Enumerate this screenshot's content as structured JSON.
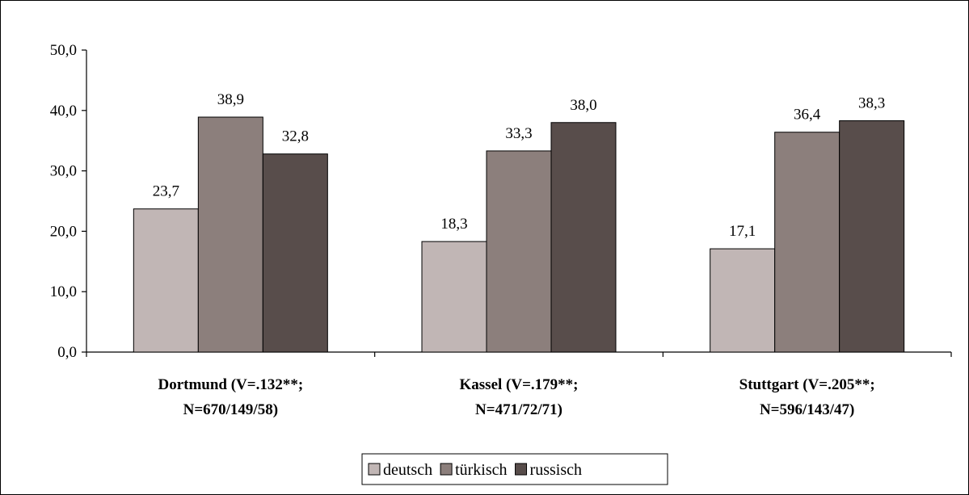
{
  "chart_data": {
    "type": "bar",
    "categories": [
      [
        "Dortmund (V=.132**;",
        "N=670/149/58)"
      ],
      [
        "Kassel (V=.179**;",
        "N=471/72/71)"
      ],
      [
        "Stuttgart (V=.205**;",
        "N=596/143/47)"
      ]
    ],
    "series": [
      {
        "name": "deutsch",
        "values": [
          23.7,
          18.3,
          17.1
        ],
        "labels": [
          "23,7",
          "18,3",
          "17,1"
        ]
      },
      {
        "name": "türkisch",
        "values": [
          38.9,
          33.3,
          36.4
        ],
        "labels": [
          "38,9",
          "33,3",
          "36,4"
        ]
      },
      {
        "name": "russisch",
        "values": [
          32.8,
          38.0,
          38.3
        ],
        "labels": [
          "32,8",
          "38,0",
          "38,3"
        ]
      }
    ],
    "ylim": [
      0,
      50
    ],
    "y_ticks": [
      0,
      10,
      20,
      30,
      40,
      50
    ],
    "y_tick_labels": [
      "0,0",
      "10,0",
      "20,0",
      "30,0",
      "40,0",
      "50,0"
    ],
    "title": "",
    "xlabel": "",
    "ylabel": "",
    "grid": false,
    "legend_position": "bottom"
  },
  "colors": {
    "deutsch": "#c1b6b5",
    "türkisch": "#8c7f7c",
    "russisch": "#584d4b",
    "axis": "#000000"
  }
}
